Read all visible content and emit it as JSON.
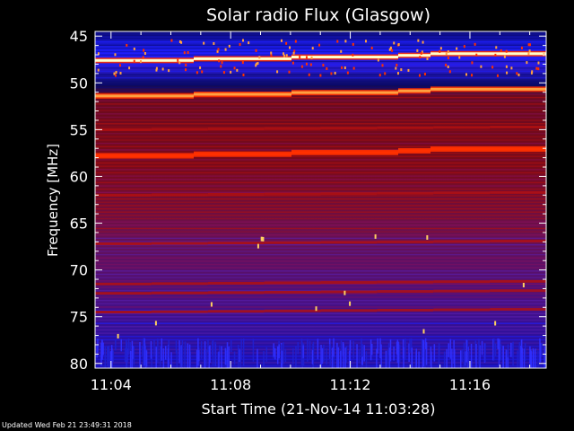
{
  "chart_data": {
    "type": "heatmap",
    "title": "Solar radio Flux (Glasgow)",
    "xlabel": "Start Time (21-Nov-14 11:03:28)",
    "ylabel": "Frequency [MHz]",
    "x_ticks": [
      "11:04",
      "11:08",
      "11:12",
      "11:16"
    ],
    "x_tick_minutes": [
      4,
      8,
      12,
      16
    ],
    "x_range_minutes": [
      3.4667,
      18.55
    ],
    "y_ticks": [
      45,
      50,
      55,
      60,
      65,
      70,
      75,
      80
    ],
    "y_range_mhz": [
      44.5,
      80.5
    ],
    "y_inverted": true,
    "bright_lines_mhz": [
      47.6,
      51.4,
      57.8
    ],
    "moderate_lines_mhz": [
      55.0,
      62.0,
      67.2,
      71.5,
      72.5,
      74.5
    ],
    "colormap": [
      "#0a0a7a",
      "#2020ff",
      "#5a20b0",
      "#8a1060",
      "#b01010",
      "#ff3000",
      "#ffa040",
      "#ffffcc"
    ]
  },
  "footer": "Updated Wed Feb 21 23:49:31 2018"
}
